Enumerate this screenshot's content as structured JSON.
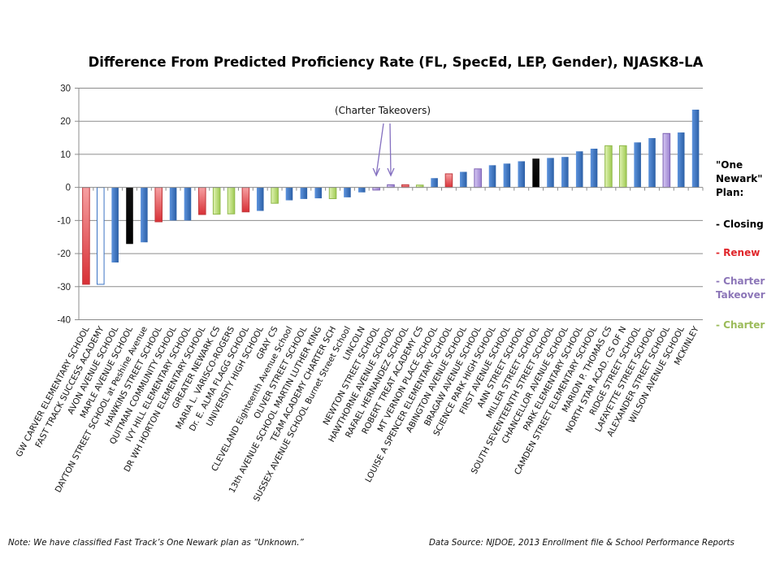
{
  "chart_data": {
    "type": "bar",
    "title": "Difference From Predicted Proficiency Rate (FL, SpecEd, LEP, Gender), NJASK8-LA",
    "xlabel": "",
    "ylabel": "",
    "ylim": [
      -40,
      30
    ],
    "yticks": [
      30,
      20,
      10,
      0,
      -10,
      -20,
      -30,
      -40
    ],
    "grid": true,
    "legend_position": "right",
    "categories": [
      "GW CARVER ELEMENTARY SCHOOL",
      "FAST TRACK SUCCESS ACADEMY",
      "AVON AVENUE SCHOOL",
      "MAPLE AVENUE SCHOOL",
      "DAYTON STREET SCHOOL at Peshine Avenue",
      "HAWKINS STREET SCHOOL",
      "QUITMAN COMMUNITY SCHOOL",
      "IVY HILL ELEMENTARY SCHOOL",
      "DR WH HORTON ELEMENTARY SCHOOL",
      "GREATER NEWARK CS",
      "MARIA L. VARISCO-ROGERS",
      "Dr. E. ALMA FLAGG SCHOOL",
      "UNIVERSITY HIGH SCHOOL",
      "GRAY CS",
      "CLEVELAND Eighteenth Avenue School",
      "OLIVER STREET SCHOOL",
      "13th AVENUE SCHOOL MARTIN LUTHER KING",
      "TEAM ACADEMY CHARTER SCH",
      "SUSSEX AVENUE SCHOOL Burnet Street School",
      "LINCOLN",
      "NEWTON STREET SCHOOL",
      "HAWTHORNE AVENUE SCHOOL",
      "RAFAEL HERNANDEZ SCHOOL",
      "ROBERT TREAT ACADEMY CS",
      "MT VERNON PLACE SCHOOL",
      "LOUISE A SPENCER ELEMENTARY SCHOOL",
      "ABINGTON AVENUE SCHOOL",
      "BRAGAW AVENUE SCHOOL",
      "SCIENCE PARK HIGH SCHOOL",
      "FIRST AVENUE SCHOOL",
      "ANN STREET SCHOOL",
      "MILLER STREET SCHOOL",
      "SOUTH SEVENTEENTH STREET SCHOOL",
      "CHANCELLOR AVENUE SCHOOL",
      "PARK ELEMENTARY SCHOOL",
      "CAMDEN STREET ELEMENTARY SCHOOL",
      "MARION P. THOMAS CS",
      "NORTH STAR ACAD. CS OF N",
      "RIDGE STREET SCHOOL",
      "LAFAYETTE STREET SCHOOL",
      "ALEXANDER STREET SCHOOL",
      "WILSON AVENUE SCHOOL",
      "MCKINLEY"
    ],
    "values": [
      -29.3,
      -29.3,
      -22.7,
      -17.1,
      -16.6,
      -10.4,
      -10.0,
      -10.0,
      -8.2,
      -8.1,
      -8.0,
      -7.4,
      -7.1,
      -4.8,
      -3.9,
      -3.5,
      -3.3,
      -3.4,
      -3.0,
      -1.5,
      -0.8,
      0.8,
      0.8,
      0.7,
      2.8,
      4.1,
      4.7,
      5.6,
      6.7,
      7.2,
      7.9,
      8.7,
      8.9,
      9.2,
      10.9,
      11.7,
      12.6,
      12.6,
      13.6,
      14.9,
      16.3,
      16.6,
      23.5
    ],
    "plan": [
      "Renew",
      "Unknown",
      "None",
      "Closing",
      "None",
      "Renew",
      "None",
      "None",
      "Renew",
      "Charter",
      "Charter",
      "Renew",
      "None",
      "Charter",
      "None",
      "None",
      "None",
      "Charter",
      "None",
      "None",
      "Charter Takeover",
      "Charter Takeover",
      "Renew",
      "Charter",
      "None",
      "Renew",
      "None",
      "Charter Takeover",
      "None",
      "None",
      "None",
      "Closing",
      "None",
      "None",
      "None",
      "None",
      "Charter",
      "Charter",
      "None",
      "None",
      "Charter Takeover",
      "None",
      "None"
    ],
    "plan_colors": {
      "None": "#3a73c4",
      "Closing": "#000000",
      "Renew": "#e8474c",
      "Charter Takeover": "#a48ed6",
      "Charter": "#a7d15a",
      "Unknown": "#ffffff"
    },
    "annotations": [
      {
        "text": "(Charter Takeovers)",
        "points_to": [
          "NEWTON STREET SCHOOL",
          "HAWTHORNE AVENUE SCHOOL"
        ]
      }
    ],
    "legend": {
      "heading": "\"One Newark\" Plan:",
      "heading_lines": [
        "\"One",
        "Newark\"",
        "Plan:"
      ],
      "entries": [
        {
          "label": "- Closing",
          "color": "#000000"
        },
        {
          "label": "- Renew",
          "color": "#e0262b"
        },
        {
          "label": "- Charter Takeover",
          "lines": [
            "- Charter",
            "Takeover"
          ],
          "color": "#8c76b8"
        },
        {
          "label": "- Charter",
          "color": "#9bbb59"
        }
      ]
    }
  },
  "footer": {
    "note": "Note:  We have classified Fast Track’s One Newark plan as “Unknown.”",
    "source": "Data Source:  NJDOE, 2013 Enrollment file & School Performance Reports"
  }
}
